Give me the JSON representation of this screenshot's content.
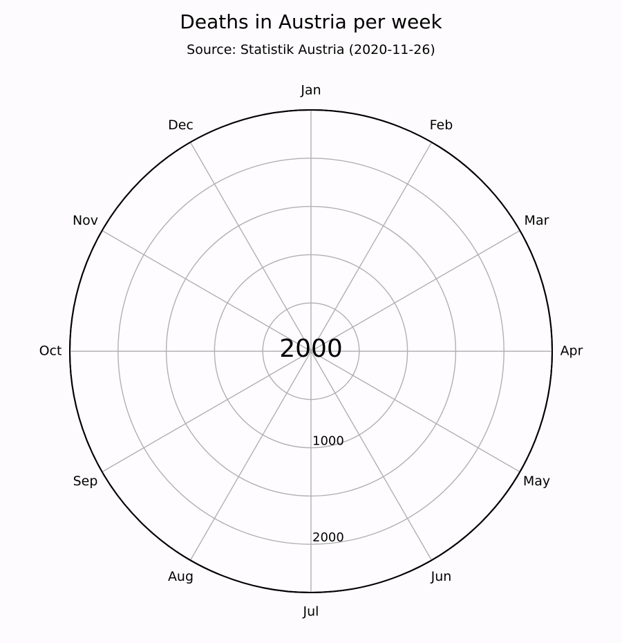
{
  "chart_data": {
    "type": "polar-line",
    "title": "Deaths in Austria per week",
    "subtitle": "Source: Statistik Austria (2020-11-26)",
    "center_label": "2000",
    "angular_ticks": [
      "Jan",
      "Feb",
      "Mar",
      "Apr",
      "May",
      "Jun",
      "Jul",
      "Aug",
      "Sep",
      "Oct",
      "Nov",
      "Dec"
    ],
    "angular_direction": "clockwise",
    "angular_zero": "top",
    "radial_range": [
      0,
      2500
    ],
    "radial_gridlines": [
      500,
      1000,
      1500,
      2000,
      2500
    ],
    "radial_tick_labels": [
      {
        "value": 1000,
        "label": "1000"
      },
      {
        "value": 2000,
        "label": "2000"
      }
    ],
    "grid": true,
    "series": []
  }
}
